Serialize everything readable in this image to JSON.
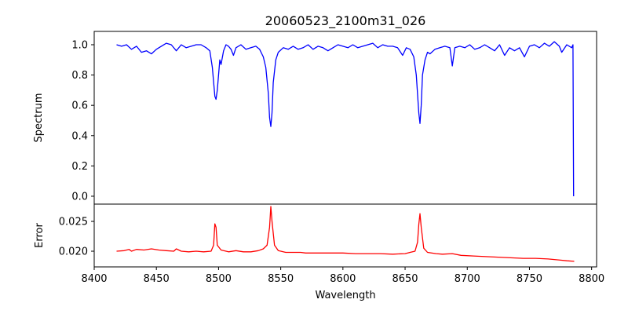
{
  "chart_data": {
    "type": "line",
    "title": "20060523_2100m31_026",
    "xlabel": "Wavelength",
    "xlim": [
      8400,
      8804
    ],
    "xticks": [
      8400,
      8450,
      8500,
      8550,
      8600,
      8650,
      8700,
      8750,
      8800
    ],
    "panels": [
      {
        "ylabel": "Spectrum",
        "ylim": [
          -0.052,
          1.088
        ],
        "yticks": [
          "0.0",
          "0.2",
          "0.4",
          "0.6",
          "0.8",
          "1.0"
        ],
        "series": {
          "name": "Spectrum",
          "color": "#0000ff",
          "x": [
            8418,
            8422,
            8426,
            8430,
            8434,
            8438,
            8442,
            8446,
            8450,
            8454,
            8458,
            8462,
            8466,
            8470,
            8474,
            8478,
            8482,
            8486,
            8490,
            8493,
            8495,
            8497,
            8498,
            8499,
            8501,
            8502,
            8504,
            8506,
            8508,
            8510,
            8512,
            8514,
            8518,
            8522,
            8526,
            8530,
            8533,
            8536,
            8538,
            8540,
            8541,
            8542,
            8543,
            8544,
            8546,
            8548,
            8552,
            8556,
            8560,
            8564,
            8568,
            8572,
            8576,
            8580,
            8584,
            8588,
            8592,
            8596,
            8600,
            8604,
            8608,
            8612,
            8616,
            8620,
            8624,
            8628,
            8632,
            8636,
            8640,
            8644,
            8648,
            8651,
            8654,
            8657,
            8659,
            8661,
            8662,
            8663,
            8664,
            8666,
            8668,
            8670,
            8674,
            8678,
            8682,
            8686,
            8688,
            8690,
            8694,
            8698,
            8702,
            8706,
            8710,
            8714,
            8718,
            8722,
            8726,
            8730,
            8734,
            8738,
            8742,
            8746,
            8750,
            8754,
            8758,
            8762,
            8766,
            8770,
            8774,
            8776,
            8780,
            8784,
            8785,
            8785.5
          ],
          "y": [
            1.0,
            0.99,
            1.0,
            0.97,
            0.99,
            0.95,
            0.96,
            0.94,
            0.97,
            0.99,
            1.01,
            1.0,
            0.96,
            1.0,
            0.98,
            0.99,
            1.0,
            1.0,
            0.98,
            0.96,
            0.85,
            0.66,
            0.64,
            0.7,
            0.9,
            0.87,
            0.96,
            1.0,
            0.99,
            0.97,
            0.93,
            0.98,
            1.0,
            0.97,
            0.98,
            0.99,
            0.97,
            0.92,
            0.85,
            0.68,
            0.52,
            0.46,
            0.55,
            0.75,
            0.9,
            0.95,
            0.98,
            0.97,
            0.99,
            0.97,
            0.98,
            1.0,
            0.97,
            0.99,
            0.98,
            0.96,
            0.98,
            1.0,
            0.99,
            0.98,
            1.0,
            0.98,
            0.99,
            1.0,
            1.01,
            0.98,
            1.0,
            0.99,
            0.99,
            0.98,
            0.93,
            0.98,
            0.97,
            0.92,
            0.8,
            0.55,
            0.48,
            0.6,
            0.8,
            0.9,
            0.95,
            0.94,
            0.97,
            0.98,
            0.99,
            0.98,
            0.86,
            0.98,
            0.99,
            0.98,
            1.0,
            0.97,
            0.98,
            1.0,
            0.98,
            0.96,
            1.0,
            0.93,
            0.98,
            0.96,
            0.98,
            0.92,
            0.99,
            1.0,
            0.98,
            1.01,
            0.99,
            1.02,
            0.99,
            0.95,
            1.0,
            0.98,
            1.0,
            0.0
          ]
        }
      },
      {
        "ylabel": "Error",
        "ylim": [
          0.01737,
          0.0279
        ],
        "yticks": [
          "0.020",
          "0.025"
        ],
        "series": {
          "name": "Error",
          "color": "#ff0000",
          "x": [
            8418,
            8424,
            8428,
            8430,
            8434,
            8440,
            8446,
            8452,
            8458,
            8464,
            8466,
            8470,
            8476,
            8482,
            8488,
            8494,
            8496,
            8497,
            8498,
            8499,
            8502,
            8508,
            8514,
            8520,
            8526,
            8532,
            8536,
            8539,
            8541,
            8542,
            8543,
            8545,
            8548,
            8554,
            8560,
            8566,
            8570,
            8580,
            8590,
            8600,
            8610,
            8620,
            8630,
            8640,
            8650,
            8654,
            8658,
            8660,
            8661,
            8662,
            8663,
            8665,
            8668,
            8675,
            8680,
            8688,
            8695,
            8705,
            8715,
            8725,
            8735,
            8745,
            8755,
            8765,
            8775,
            8780,
            8786
          ],
          "y": [
            0.02,
            0.0201,
            0.0203,
            0.02,
            0.0203,
            0.0202,
            0.0204,
            0.0202,
            0.0201,
            0.02,
            0.0204,
            0.02,
            0.0199,
            0.02,
            0.0199,
            0.02,
            0.021,
            0.0246,
            0.024,
            0.021,
            0.0202,
            0.0199,
            0.0201,
            0.0199,
            0.0199,
            0.0201,
            0.0204,
            0.021,
            0.024,
            0.0275,
            0.025,
            0.021,
            0.0201,
            0.0198,
            0.0198,
            0.0198,
            0.0197,
            0.0197,
            0.0197,
            0.0197,
            0.0196,
            0.0196,
            0.0196,
            0.0195,
            0.0196,
            0.0198,
            0.02,
            0.0215,
            0.0245,
            0.0263,
            0.024,
            0.0205,
            0.0198,
            0.0196,
            0.0195,
            0.0196,
            0.0193,
            0.0192,
            0.0191,
            0.019,
            0.0189,
            0.0188,
            0.0188,
            0.0187,
            0.0185,
            0.0184,
            0.0183
          ]
        }
      }
    ]
  }
}
